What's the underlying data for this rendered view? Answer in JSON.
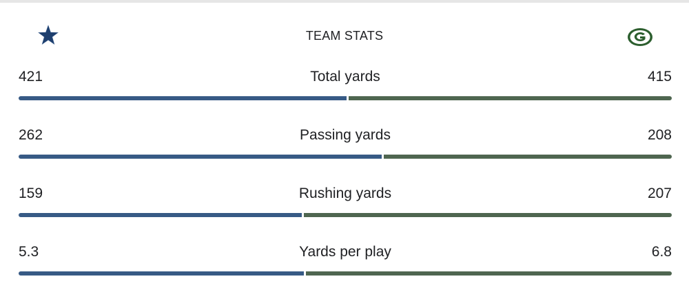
{
  "header": {
    "title": "TEAM STATS",
    "away_logo_icon": "star-icon",
    "home_logo_icon": "g-logo-icon"
  },
  "colors": {
    "away": "#375A85",
    "home": "#4F6650"
  },
  "stats": [
    {
      "label": "Total yards",
      "away": "421",
      "home": "415",
      "away_share": 0.5036
    },
    {
      "label": "Passing yards",
      "away": "262",
      "home": "208",
      "away_share": 0.5574
    },
    {
      "label": "Rushing yards",
      "away": "159",
      "home": "207",
      "away_share": 0.4344
    },
    {
      "label": "Yards per play",
      "away": "5.3",
      "home": "6.8",
      "away_share": 0.438
    }
  ]
}
